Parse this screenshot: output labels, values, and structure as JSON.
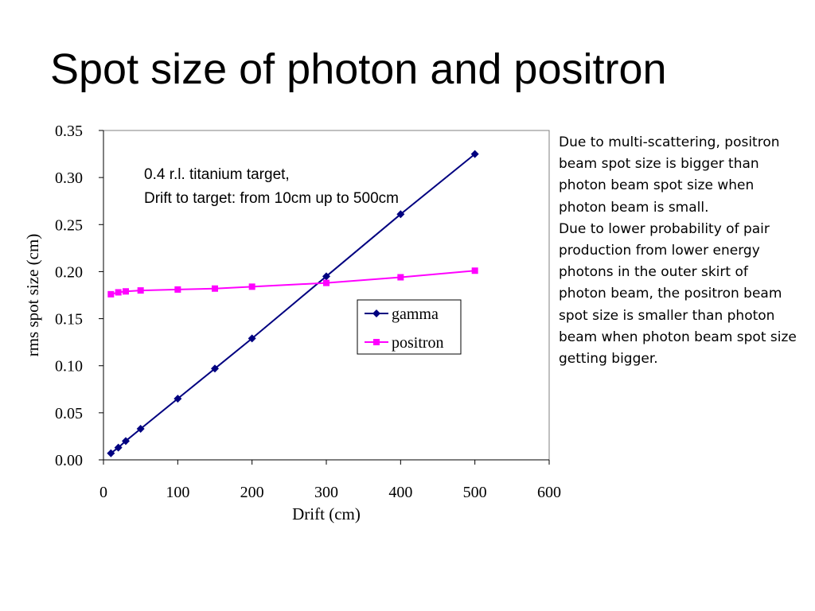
{
  "slide": {
    "title": "Spot size of photon and positron",
    "notes": [
      "Due to multi-scattering, positron beam spot size is bigger than photon beam spot size when photon beam is small.",
      "Due to lower probability of pair production from lower energy photons in the outer skirt of photon beam, the positron beam spot size is smaller than photon beam when photon beam spot size getting bigger."
    ]
  },
  "chart_data": {
    "type": "line",
    "xlabel": "Drift (cm)",
    "ylabel": "rms spot size (cm)",
    "xlim": [
      0,
      600
    ],
    "ylim": [
      0,
      0.35
    ],
    "x_ticks": [
      "0",
      "100",
      "200",
      "300",
      "400",
      "500",
      "600"
    ],
    "y_ticks": [
      "0.00",
      "0.05",
      "0.10",
      "0.15",
      "0.20",
      "0.25",
      "0.30",
      "0.35"
    ],
    "grid": false,
    "legend_position": "right-middle",
    "annotation": [
      "0.4 r.l. titanium target,",
      "Drift to target: from 10cm up to 500cm"
    ],
    "series": [
      {
        "name": "gamma",
        "color": "#000080",
        "marker": "diamond",
        "points": [
          [
            10,
            0.007
          ],
          [
            20,
            0.013
          ],
          [
            30,
            0.02
          ],
          [
            50,
            0.033
          ],
          [
            100,
            0.065
          ],
          [
            150,
            0.097
          ],
          [
            200,
            0.129
          ],
          [
            300,
            0.195
          ],
          [
            400,
            0.261
          ],
          [
            500,
            0.325
          ]
        ]
      },
      {
        "name": "positron",
        "color": "#ff00ff",
        "marker": "square",
        "points": [
          [
            10,
            0.176
          ],
          [
            20,
            0.178
          ],
          [
            30,
            0.179
          ],
          [
            50,
            0.18
          ],
          [
            100,
            0.181
          ],
          [
            150,
            0.182
          ],
          [
            200,
            0.184
          ],
          [
            300,
            0.188
          ],
          [
            400,
            0.194
          ],
          [
            500,
            0.201
          ]
        ]
      }
    ]
  }
}
